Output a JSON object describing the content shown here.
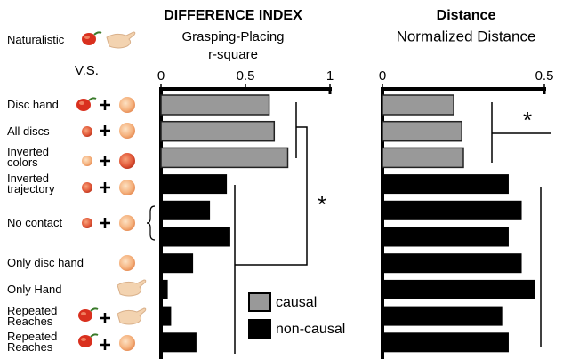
{
  "chart_data": [
    {
      "type": "bar",
      "orientation": "horizontal",
      "title": "DIFFERENCE INDEX",
      "xlabel": [
        "Grasping-Placing",
        "r-square"
      ],
      "naturalistic": "Naturalistic",
      "vs": "V.S.",
      "categories": [
        "Disc hand",
        "All discs",
        "Inverted colors",
        "Inverted trajectory",
        "No contact",
        null,
        "Only disc hand",
        "Only Hand",
        "Repeated Reaches",
        "Repeated Reaches"
      ],
      "values": [
        0.64,
        0.67,
        0.75,
        0.39,
        0.29,
        0.41,
        0.19,
        0.04,
        0.06,
        0.21
      ],
      "colors": [
        "#999999",
        "#999999",
        "#999999",
        "#000000",
        "#000000",
        "#000000",
        "#000000",
        "#000000",
        "#000000",
        "#000000"
      ],
      "xlim": [
        0,
        1
      ],
      "xticks": [
        0,
        0.5,
        1
      ],
      "annotation": "*",
      "legend": [
        {
          "name": "causal",
          "color": "#999999"
        },
        {
          "name": "non-causal",
          "color": "#000000"
        }
      ]
    },
    {
      "type": "bar",
      "orientation": "horizontal",
      "title": "Distance",
      "xlabel": [
        "Normalized Distance"
      ],
      "values": [
        0.22,
        0.245,
        0.25,
        0.39,
        0.43,
        0.39,
        0.43,
        0.47,
        0.37,
        0.39
      ],
      "colors": [
        "#999999",
        "#999999",
        "#999999",
        "#000000",
        "#000000",
        "#000000",
        "#000000",
        "#000000",
        "#000000",
        "#000000"
      ],
      "xlim": [
        0,
        0.5
      ],
      "xticks": [
        0,
        0.5
      ],
      "annotation": "*"
    }
  ]
}
